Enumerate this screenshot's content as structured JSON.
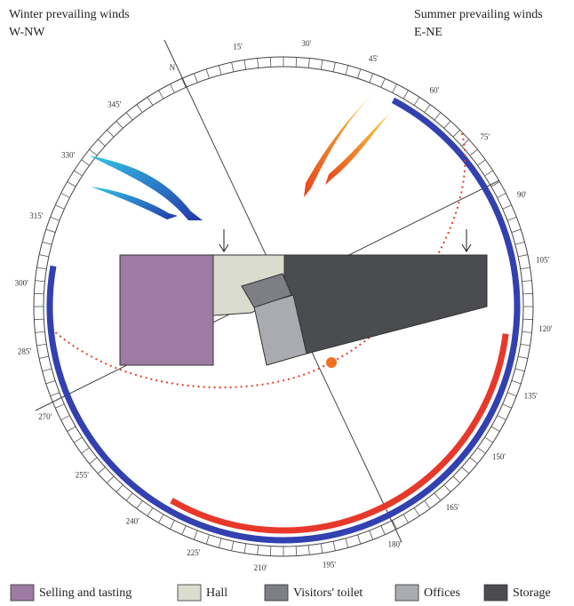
{
  "winter": {
    "title": "Winter prevailing winds",
    "direction": "W-NW"
  },
  "summer": {
    "title": "Summer prevailing winds",
    "direction": "E-NE"
  },
  "compass": {
    "labels": [
      "N",
      "15'",
      "30'",
      "45'",
      "60'",
      "75'",
      "90'",
      "105'",
      "120'",
      "135'",
      "150'",
      "165'",
      "180'",
      "195'",
      "210'",
      "225'",
      "240'",
      "255'",
      "270'",
      "285'",
      "300'",
      "315'",
      "330'",
      "345'"
    ]
  },
  "legend": [
    {
      "label": "Selling and tasting",
      "color": "#9d7ba3"
    },
    {
      "label": "Hall",
      "color": "#d9dccf"
    },
    {
      "label": "Visitors' toilet",
      "color": "#7d7f84"
    },
    {
      "label": "Offices",
      "color": "#a9abb0"
    },
    {
      "label": "Storage",
      "color": "#4b4c50"
    }
  ]
}
